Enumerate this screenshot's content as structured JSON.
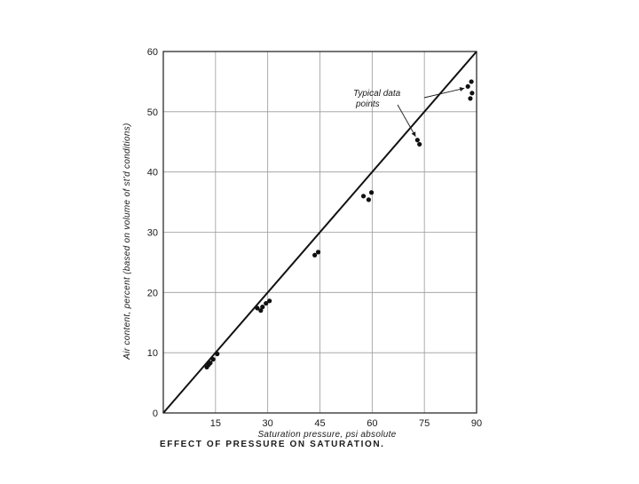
{
  "chart_data": {
    "type": "scatter",
    "title": "",
    "caption": "EFFECT OF PRESSURE ON SATURATION.",
    "xlabel": "Saturation pressure, psi absolute",
    "ylabel": "Air content, percent (based on volume of st'd conditions)",
    "xlim": [
      0,
      90
    ],
    "ylim": [
      0,
      60
    ],
    "x_ticks": [
      15,
      30,
      45,
      60,
      75,
      90
    ],
    "y_ticks": [
      0,
      10,
      20,
      30,
      40,
      50,
      60
    ],
    "grid": true,
    "annotation": {
      "line1": "Typical data",
      "line2": "points"
    },
    "fit_line": {
      "x": [
        0,
        90
      ],
      "y": [
        0,
        60
      ],
      "label": ""
    },
    "series": [
      {
        "name": "",
        "points": [
          [
            12.5,
            7.6
          ],
          [
            13.0,
            8.0
          ],
          [
            13.5,
            8.3
          ],
          [
            14.3,
            8.9
          ],
          [
            15.5,
            9.8
          ],
          [
            27.0,
            17.4
          ],
          [
            28.0,
            17.0
          ],
          [
            28.5,
            17.6
          ],
          [
            29.5,
            18.2
          ],
          [
            30.5,
            18.6
          ],
          [
            43.5,
            26.2
          ],
          [
            44.5,
            26.7
          ],
          [
            57.5,
            36.0
          ],
          [
            59.0,
            35.4
          ],
          [
            59.8,
            36.6
          ],
          [
            73.0,
            45.3
          ],
          [
            73.6,
            44.6
          ],
          [
            87.5,
            54.2
          ],
          [
            88.5,
            55.0
          ],
          [
            88.7,
            53.1
          ],
          [
            88.2,
            52.2
          ]
        ]
      }
    ]
  }
}
